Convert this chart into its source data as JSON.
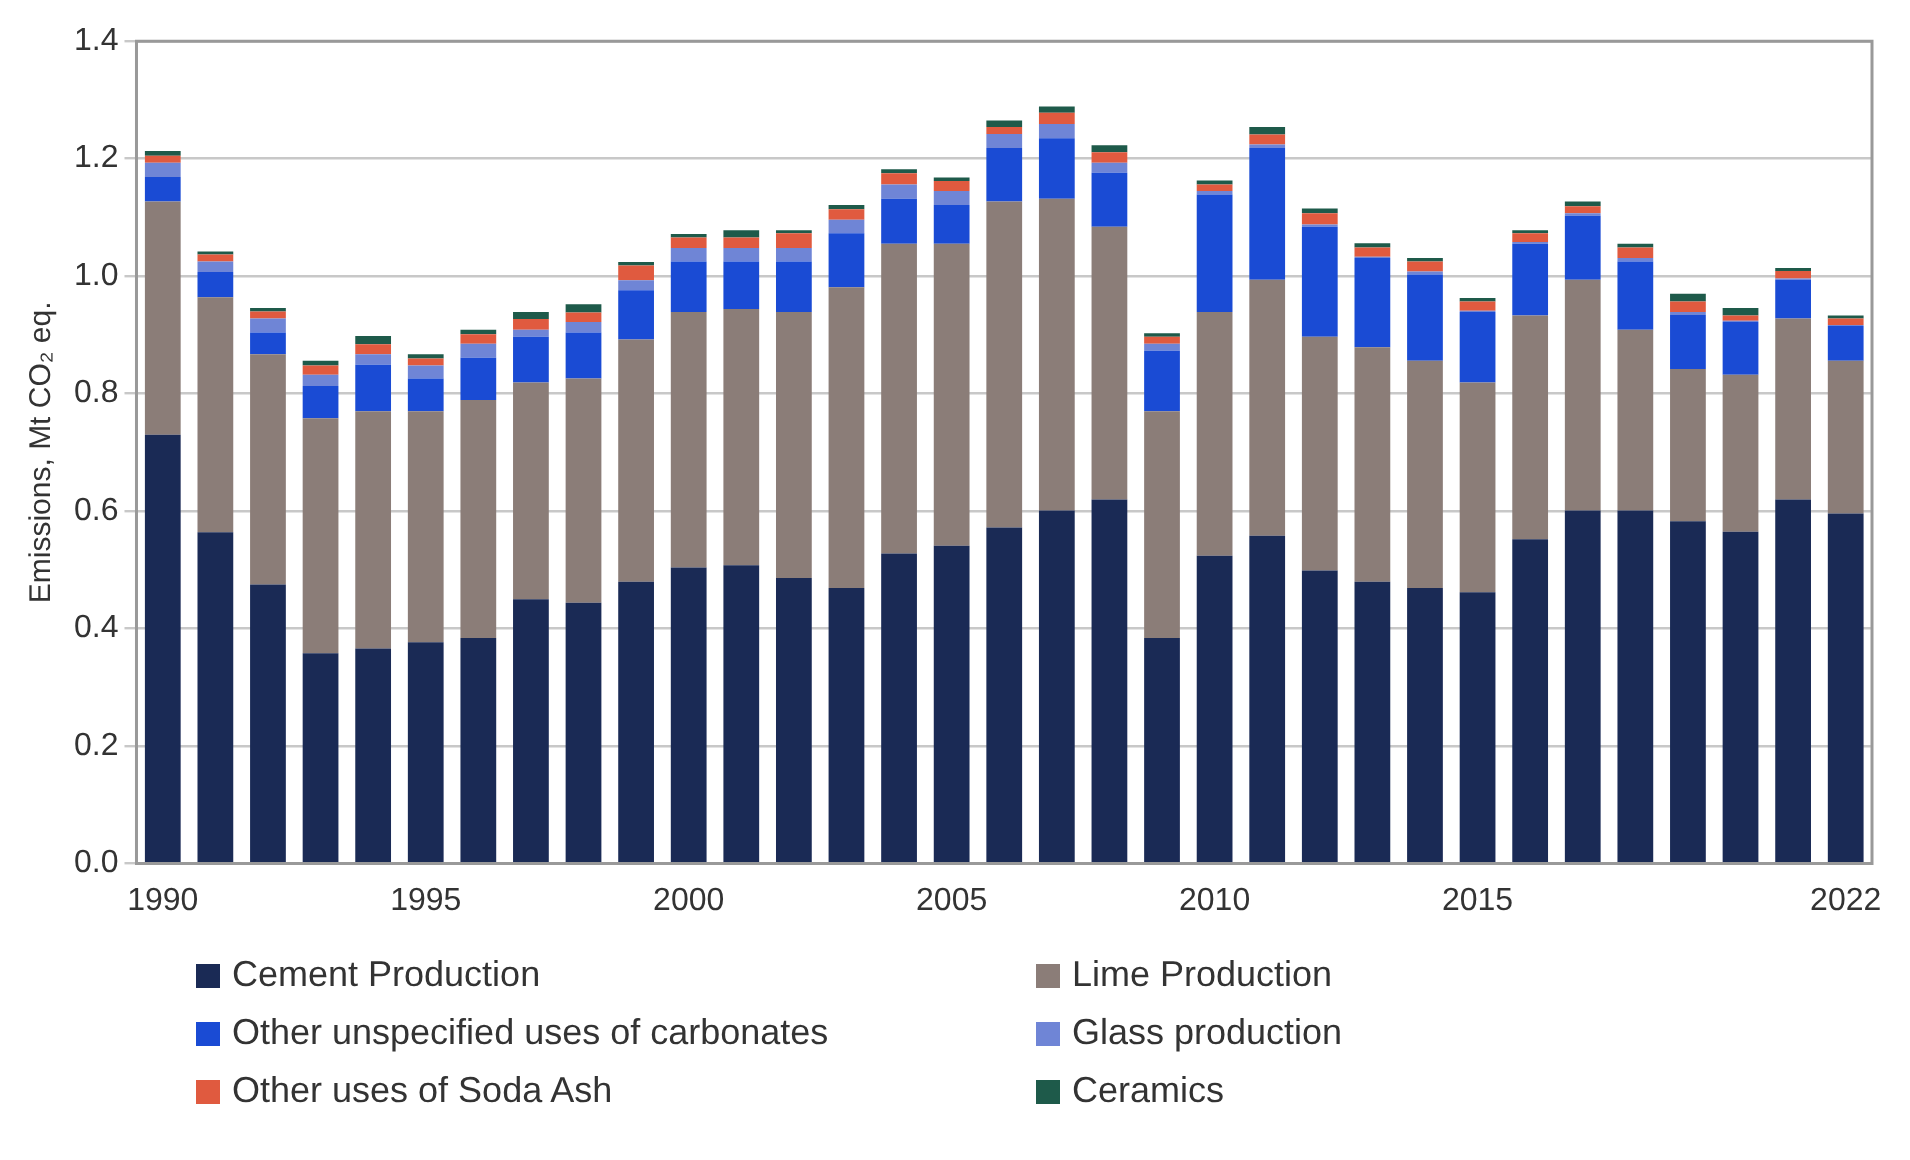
{
  "chart_data": {
    "type": "bar",
    "stacked": true,
    "ylabel": "Emissions, Mt CO₂ eq.",
    "categories": [
      "1990",
      null,
      null,
      null,
      null,
      "1995",
      null,
      null,
      null,
      null,
      "2000",
      null,
      null,
      null,
      null,
      "2005",
      null,
      null,
      null,
      null,
      "2010",
      null,
      null,
      null,
      null,
      "2015",
      null,
      null,
      null,
      null,
      null,
      null,
      "2022"
    ],
    "series": [
      {
        "name": "Cement Production",
        "color": "#1a2a55",
        "values": [
          0.73,
          0.564,
          0.475,
          0.358,
          0.366,
          0.377,
          0.384,
          0.45,
          0.444,
          0.48,
          0.504,
          0.508,
          0.486,
          0.469,
          0.528,
          0.541,
          0.572,
          0.601,
          0.62,
          0.384,
          0.524,
          0.558,
          0.499,
          0.48,
          0.469,
          0.462,
          0.552,
          0.601,
          0.601,
          0.583,
          0.565,
          0.62,
          0.596
        ]
      },
      {
        "name": "Lime Production",
        "color": "#8b7d78",
        "values": [
          0.397,
          0.4,
          0.392,
          0.4,
          0.404,
          0.393,
          0.405,
          0.369,
          0.382,
          0.412,
          0.435,
          0.436,
          0.453,
          0.512,
          0.527,
          0.514,
          0.555,
          0.531,
          0.464,
          0.386,
          0.415,
          0.436,
          0.398,
          0.399,
          0.387,
          0.357,
          0.381,
          0.393,
          0.308,
          0.259,
          0.267,
          0.308,
          0.26
        ]
      },
      {
        "name": "Other unspecified uses of carbonates",
        "color": "#1a4bd4",
        "values": [
          0.042,
          0.043,
          0.037,
          0.055,
          0.079,
          0.056,
          0.072,
          0.078,
          0.078,
          0.084,
          0.086,
          0.081,
          0.086,
          0.092,
          0.077,
          0.066,
          0.091,
          0.103,
          0.092,
          0.103,
          0.2,
          0.224,
          0.187,
          0.152,
          0.147,
          0.12,
          0.122,
          0.109,
          0.116,
          0.092,
          0.09,
          0.066,
          0.059
        ]
      },
      {
        "name": "Glass production",
        "color": "#6f85d6",
        "values": [
          0.024,
          0.018,
          0.024,
          0.019,
          0.018,
          0.022,
          0.024,
          0.012,
          0.018,
          0.017,
          0.023,
          0.023,
          0.023,
          0.023,
          0.024,
          0.024,
          0.024,
          0.024,
          0.017,
          0.012,
          0.006,
          0.006,
          0.004,
          0.002,
          0.005,
          0.002,
          0.003,
          0.004,
          0.006,
          0.005,
          0.002,
          0.002,
          0.002
        ]
      },
      {
        "name": "Other uses of Soda Ash",
        "color": "#e05a3f",
        "values": [
          0.012,
          0.012,
          0.012,
          0.016,
          0.017,
          0.012,
          0.016,
          0.018,
          0.016,
          0.025,
          0.018,
          0.018,
          0.025,
          0.018,
          0.019,
          0.017,
          0.012,
          0.019,
          0.018,
          0.012,
          0.011,
          0.017,
          0.019,
          0.016,
          0.017,
          0.016,
          0.015,
          0.012,
          0.018,
          0.018,
          0.009,
          0.013,
          0.011
        ]
      },
      {
        "name": "Ceramics",
        "color": "#1e5a4a",
        "values": [
          0.008,
          0.005,
          0.006,
          0.008,
          0.014,
          0.007,
          0.008,
          0.012,
          0.014,
          0.006,
          0.006,
          0.012,
          0.005,
          0.007,
          0.007,
          0.006,
          0.011,
          0.011,
          0.012,
          0.006,
          0.007,
          0.013,
          0.008,
          0.007,
          0.006,
          0.006,
          0.005,
          0.008,
          0.006,
          0.013,
          0.013,
          0.005,
          0.005
        ]
      }
    ],
    "ylim": [
      0,
      1.4
    ],
    "yticks": [
      {
        "value": 0,
        "label": "0.0"
      },
      0.2,
      0.4,
      0.6,
      0.8,
      {
        "value": 1,
        "label": "1.0"
      },
      1.2,
      1.4
    ],
    "grid": "y",
    "legend": "bottom"
  }
}
